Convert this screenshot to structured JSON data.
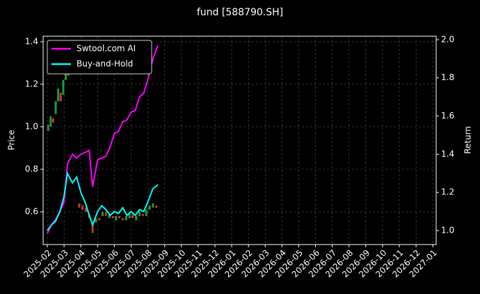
{
  "chart_data": {
    "type": "candlestick",
    "title": "fund [588790.SH]",
    "ylabel": "Price",
    "y2label": "Return",
    "candles": {
      "up_color": "#1f9a3a",
      "down_color": "#c0392b",
      "x": [
        0.05,
        0.2,
        0.35,
        0.5,
        0.65,
        0.8,
        0.95,
        1.1,
        1.25,
        1.4,
        1.9,
        2.1,
        2.3,
        2.5,
        2.7,
        2.9,
        3.1,
        3.3,
        3.5,
        3.7,
        3.9,
        4.1,
        4.3,
        4.5,
        4.7,
        4.9,
        5.1,
        5.3,
        5.5,
        5.7,
        5.9,
        6.1,
        6.3,
        6.5
      ],
      "open": [
        0.98,
        1.0,
        1.04,
        1.06,
        1.12,
        1.16,
        1.15,
        1.22,
        1.27,
        1.25,
        0.64,
        0.63,
        0.62,
        0.59,
        0.55,
        0.55,
        0.57,
        0.58,
        0.6,
        0.57,
        0.58,
        0.56,
        0.58,
        0.57,
        0.56,
        0.57,
        0.59,
        0.56,
        0.58,
        0.59,
        0.58,
        0.61,
        0.62,
        0.63
      ],
      "close": [
        1.01,
        1.05,
        1.02,
        1.12,
        1.18,
        1.12,
        1.22,
        1.28,
        1.24,
        1.31,
        0.62,
        0.61,
        0.6,
        0.57,
        0.5,
        0.57,
        0.56,
        0.6,
        0.58,
        0.59,
        0.57,
        0.58,
        0.57,
        0.56,
        0.58,
        0.59,
        0.57,
        0.58,
        0.6,
        0.58,
        0.61,
        0.63,
        0.64,
        0.62
      ]
    },
    "x": [
      0,
      0.25,
      0.5,
      0.75,
      1,
      1.2,
      1.5,
      1.75,
      2,
      2.25,
      2.5,
      2.7,
      3,
      3.25,
      3.5,
      3.75,
      4,
      4.25,
      4.5,
      4.75,
      5,
      5.25,
      5.5,
      5.75,
      6,
      6.3,
      6.6
    ],
    "series": [
      {
        "name": "Swtool.com AI",
        "color": "#ff00ff",
        "axis": "y2",
        "values": [
          0.985,
          1.03,
          1.06,
          1.1,
          1.15,
          1.35,
          1.4,
          1.38,
          1.4,
          1.41,
          1.42,
          1.23,
          1.37,
          1.38,
          1.39,
          1.44,
          1.51,
          1.52,
          1.57,
          1.58,
          1.62,
          1.63,
          1.7,
          1.72,
          1.79,
          1.9,
          1.97
        ]
      },
      {
        "name": "Buy-and-Hold",
        "color": "#00ffff",
        "axis": "y2",
        "values": [
          1.0,
          1.03,
          1.05,
          1.1,
          1.18,
          1.3,
          1.25,
          1.28,
          1.2,
          1.15,
          1.08,
          1.03,
          1.1,
          1.13,
          1.11,
          1.08,
          1.1,
          1.09,
          1.12,
          1.08,
          1.1,
          1.08,
          1.11,
          1.1,
          1.15,
          1.22,
          1.24
        ]
      }
    ],
    "xlim": [
      -0.25,
      23.2
    ],
    "xticks": [
      {
        "value": 0,
        "label": "2025-02"
      },
      {
        "value": 1,
        "label": "2025-03"
      },
      {
        "value": 2,
        "label": "2025-04"
      },
      {
        "value": 3,
        "label": "2025-05"
      },
      {
        "value": 4,
        "label": "2025-06"
      },
      {
        "value": 5,
        "label": "2025-07"
      },
      {
        "value": 6,
        "label": "2025-08"
      },
      {
        "value": 7,
        "label": "2025-09"
      },
      {
        "value": 8,
        "label": "2025-10"
      },
      {
        "value": 9,
        "label": "2025-11"
      },
      {
        "value": 10,
        "label": "2025-12"
      },
      {
        "value": 11,
        "label": "2026-01"
      },
      {
        "value": 12,
        "label": "2026-02"
      },
      {
        "value": 13,
        "label": "2026-03"
      },
      {
        "value": 14,
        "label": "2026-04"
      },
      {
        "value": 15,
        "label": "2026-05"
      },
      {
        "value": 16,
        "label": "2026-06"
      },
      {
        "value": 17,
        "label": "2026-07"
      },
      {
        "value": 18,
        "label": "2026-08"
      },
      {
        "value": 19,
        "label": "2026-09"
      },
      {
        "value": 20,
        "label": "2026-10"
      },
      {
        "value": 21,
        "label": "2026-11"
      },
      {
        "value": 22,
        "label": "2026-12"
      },
      {
        "value": 23,
        "label": "2027-01"
      }
    ],
    "ylim": [
      0.446,
      1.426
    ],
    "yticks": [
      0.6,
      0.8,
      {
        "value": 1,
        "label": "1.0"
      },
      1.2,
      1.4
    ],
    "y2lim": [
      0.927,
      2.018
    ],
    "y2ticks": [
      {
        "value": 1,
        "label": "1.0"
      },
      1.2,
      1.4,
      1.6,
      1.8,
      {
        "value": 2,
        "label": "2.0"
      }
    ],
    "grid": true,
    "legend": "upper left"
  }
}
